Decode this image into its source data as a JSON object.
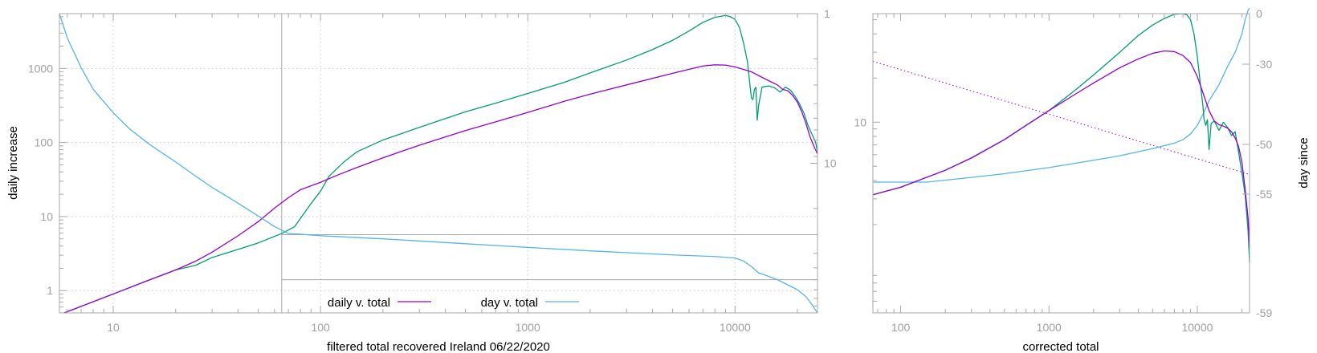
{
  "chart_data": [
    {
      "type": "line",
      "xlabel": "filtered total recovered Ireland 06/22/2020",
      "ylabel": "daily increase",
      "x_scale": "log",
      "y_scale": "log",
      "xlim": [
        5.5,
        25000
      ],
      "ylim": [
        0.5,
        5500
      ],
      "x_ticks": [
        10,
        100,
        1000,
        10000
      ],
      "x_tick_labels": [
        "10",
        "100",
        "1000",
        "10000"
      ],
      "y_ticks": [
        1,
        10,
        100,
        1000
      ],
      "y_tick_labels": [
        "1",
        "10",
        "100",
        "1000"
      ],
      "y2_scale": "log_reversed",
      "y2lim": [
        1,
        100
      ],
      "y2_ticks": [
        1,
        10
      ],
      "y2_tick_labels": [
        "1",
        "10"
      ],
      "grid": true,
      "legend_placement": "bottom",
      "legend": [
        {
          "label": "daily v. total",
          "color": "#9400d3"
        },
        {
          "label": "day v. total",
          "color": "#56b4e9"
        }
      ],
      "guides": {
        "vertical_x": 65,
        "horizontal_y2": [
          30,
          60
        ]
      },
      "series": [
        {
          "name": "daily v. total",
          "color": "#9400d3",
          "axis": "y",
          "points": [
            [
              5.8,
              0.5
            ],
            [
              10,
              0.9
            ],
            [
              15,
              1.4
            ],
            [
              20,
              1.9
            ],
            [
              25,
              2.5
            ],
            [
              30,
              3.3
            ],
            [
              40,
              5.5
            ],
            [
              50,
              8.5
            ],
            [
              60,
              13
            ],
            [
              70,
              18
            ],
            [
              80,
              23
            ],
            [
              100,
              29
            ],
            [
              120,
              36
            ],
            [
              150,
              46
            ],
            [
              200,
              62
            ],
            [
              300,
              92
            ],
            [
              500,
              145
            ],
            [
              700,
              190
            ],
            [
              1000,
              255
            ],
            [
              1500,
              360
            ],
            [
              2000,
              450
            ],
            [
              3000,
              600
            ],
            [
              5000,
              860
            ],
            [
              7000,
              1080
            ],
            [
              8000,
              1120
            ],
            [
              9000,
              1110
            ],
            [
              10000,
              1050
            ],
            [
              12000,
              900
            ],
            [
              14000,
              720
            ],
            [
              16000,
              600
            ],
            [
              17000,
              520
            ],
            [
              18000,
              500
            ],
            [
              19000,
              430
            ],
            [
              20000,
              350
            ],
            [
              21000,
              260
            ],
            [
              22000,
              180
            ],
            [
              23000,
              120
            ],
            [
              24000,
              90
            ],
            [
              25000,
              70
            ]
          ]
        },
        {
          "color": "#009e73",
          "axis": "y",
          "points": [
            [
              5.8,
              0.5
            ],
            [
              10,
              0.9
            ],
            [
              15,
              1.4
            ],
            [
              20,
              1.9
            ],
            [
              25,
              2.2
            ],
            [
              30,
              2.8
            ],
            [
              40,
              3.6
            ],
            [
              50,
              4.4
            ],
            [
              60,
              5.4
            ],
            [
              65,
              5.9
            ],
            [
              75,
              7.3
            ],
            [
              90,
              15
            ],
            [
              100,
              22
            ],
            [
              110,
              35
            ],
            [
              130,
              55
            ],
            [
              150,
              75
            ],
            [
              200,
              108
            ],
            [
              300,
              160
            ],
            [
              500,
              260
            ],
            [
              700,
              340
            ],
            [
              1000,
              460
            ],
            [
              1500,
              650
            ],
            [
              2000,
              870
            ],
            [
              3000,
              1300
            ],
            [
              4000,
              1800
            ],
            [
              5000,
              2400
            ],
            [
              6000,
              3200
            ],
            [
              7000,
              4200
            ],
            [
              8000,
              4900
            ],
            [
              9000,
              5200
            ],
            [
              9500,
              5000
            ],
            [
              10000,
              4600
            ],
            [
              10500,
              3600
            ],
            [
              11000,
              2200
            ],
            [
              11500,
              1200
            ],
            [
              11800,
              600
            ],
            [
              12000,
              400
            ],
            [
              12200,
              380
            ],
            [
              12400,
              520
            ],
            [
              12600,
              560
            ],
            [
              12800,
              200
            ],
            [
              13000,
              320
            ],
            [
              13500,
              560
            ],
            [
              14500,
              580
            ],
            [
              15500,
              550
            ],
            [
              16500,
              480
            ],
            [
              17500,
              560
            ],
            [
              18500,
              510
            ],
            [
              19500,
              420
            ],
            [
              20500,
              330
            ],
            [
              21500,
              250
            ],
            [
              22500,
              170
            ],
            [
              23500,
              130
            ],
            [
              24500,
              100
            ],
            [
              25000,
              75
            ]
          ]
        },
        {
          "name": "day v. total",
          "color": "#56b4e9",
          "axis": "y2",
          "points": [
            [
              5.5,
              1
            ],
            [
              6,
              1.45
            ],
            [
              7,
              2.3
            ],
            [
              8,
              3.2
            ],
            [
              10,
              4.6
            ],
            [
              12,
              5.9
            ],
            [
              15,
              7.5
            ],
            [
              20,
              9.8
            ],
            [
              25,
              12.2
            ],
            [
              30,
              14.5
            ],
            [
              40,
              18.5
            ],
            [
              50,
              22.5
            ],
            [
              60,
              26.5
            ],
            [
              65,
              28
            ],
            [
              70,
              29.5
            ],
            [
              80,
              29.8
            ],
            [
              100,
              30.5
            ],
            [
              200,
              32
            ],
            [
              500,
              34.5
            ],
            [
              1000,
              36.5
            ],
            [
              2000,
              38.5
            ],
            [
              5000,
              41
            ],
            [
              8000,
              42
            ],
            [
              10000,
              43
            ],
            [
              11000,
              45
            ],
            [
              12000,
              49
            ],
            [
              13000,
              54
            ],
            [
              14000,
              56
            ],
            [
              16000,
              60
            ],
            [
              18000,
              65
            ],
            [
              20000,
              70
            ],
            [
              22000,
              78
            ],
            [
              23500,
              88
            ],
            [
              24500,
              96
            ],
            [
              25000,
              100
            ]
          ]
        }
      ]
    },
    {
      "type": "line",
      "xlabel": "corrected total",
      "ylabel": "day since",
      "x_scale": "log",
      "y_scale": "log",
      "xlim": [
        65,
        22500
      ],
      "ylim": [
        0.5,
        55
      ],
      "x_ticks": [
        100,
        1000,
        10000
      ],
      "x_tick_labels": [
        "100",
        "1000",
        "10000"
      ],
      "y_ticks": [
        10
      ],
      "y_tick_labels": [
        "10"
      ],
      "y2_scale": "linear",
      "y2_ticks": [
        0,
        -30,
        -50,
        -55,
        -59
      ],
      "y2_tick_labels": [
        "0",
        "-30",
        "-50",
        "-55",
        "-59"
      ],
      "grid": false,
      "series": [
        {
          "color": "#9400d3",
          "axis": "y",
          "points": [
            [
              65,
              3.2
            ],
            [
              100,
              3.6
            ],
            [
              200,
              4.7
            ],
            [
              300,
              5.7
            ],
            [
              500,
              7.6
            ],
            [
              700,
              9.5
            ],
            [
              1000,
              12
            ],
            [
              1500,
              15.5
            ],
            [
              2000,
              18.5
            ],
            [
              3000,
              23.5
            ],
            [
              4000,
              27
            ],
            [
              5000,
              29.5
            ],
            [
              6000,
              30.6
            ],
            [
              7000,
              30.3
            ],
            [
              8000,
              28.5
            ],
            [
              9000,
              25.5
            ],
            [
              10000,
              20.5
            ],
            [
              11000,
              15.5
            ],
            [
              12000,
              12
            ],
            [
              13000,
              10.2
            ],
            [
              14000,
              9.6
            ],
            [
              15000,
              9.4
            ],
            [
              16000,
              9.1
            ],
            [
              17000,
              8.6
            ],
            [
              18000,
              7.8
            ],
            [
              19000,
              6.8
            ],
            [
              20000,
              5.3
            ],
            [
              21000,
              3.5
            ],
            [
              22000,
              2.2
            ],
            [
              22500,
              1.4
            ]
          ]
        },
        {
          "color": "#009e73",
          "axis": "y",
          "points": [
            [
              65,
              3.2
            ],
            [
              100,
              3.6
            ],
            [
              200,
              4.7
            ],
            [
              300,
              5.7
            ],
            [
              500,
              7.6
            ],
            [
              700,
              9.5
            ],
            [
              1000,
              12
            ],
            [
              1500,
              16.5
            ],
            [
              2000,
              21
            ],
            [
              3000,
              30
            ],
            [
              4000,
              39
            ],
            [
              5000,
              46
            ],
            [
              6000,
              51
            ],
            [
              7000,
              54.5
            ],
            [
              8000,
              55
            ],
            [
              8500,
              54
            ],
            [
              9000,
              50
            ],
            [
              9500,
              40
            ],
            [
              10000,
              28
            ],
            [
              10500,
              18
            ],
            [
              10900,
              13
            ],
            [
              11100,
              10.5
            ],
            [
              11400,
              9.5
            ],
            [
              11700,
              10.4
            ],
            [
              12000,
              6.5
            ],
            [
              12400,
              9.8
            ],
            [
              13000,
              10.2
            ],
            [
              14000,
              8.8
            ],
            [
              15000,
              10
            ],
            [
              16000,
              9.2
            ],
            [
              17000,
              8.1
            ],
            [
              18000,
              8.6
            ],
            [
              19000,
              6.2
            ],
            [
              20000,
              4.5
            ],
            [
              21000,
              3.2
            ],
            [
              22000,
              1.8
            ],
            [
              22500,
              1.1
            ]
          ]
        },
        {
          "color": "#56b4e9",
          "axis": "y",
          "points": [
            [
              65,
              3.9
            ],
            [
              100,
              3.9
            ],
            [
              150,
              3.9
            ],
            [
              300,
              4.2
            ],
            [
              500,
              4.45
            ],
            [
              1000,
              4.9
            ],
            [
              2000,
              5.5
            ],
            [
              3000,
              5.9
            ],
            [
              5000,
              6.6
            ],
            [
              7000,
              7.2
            ],
            [
              8000,
              7.6
            ],
            [
              9000,
              8.3
            ],
            [
              10000,
              9.5
            ],
            [
              11000,
              11.5
            ],
            [
              12000,
              14
            ],
            [
              14000,
              18
            ],
            [
              16000,
              24
            ],
            [
              18000,
              30
            ],
            [
              20000,
              40
            ],
            [
              21000,
              50
            ],
            [
              22000,
              58
            ],
            [
              22500,
              60
            ]
          ]
        },
        {
          "color": "#9400d3",
          "style": "dotted",
          "axis": "y",
          "points": [
            [
              65,
              26
            ],
            [
              22500,
              4.4
            ]
          ]
        }
      ]
    }
  ]
}
